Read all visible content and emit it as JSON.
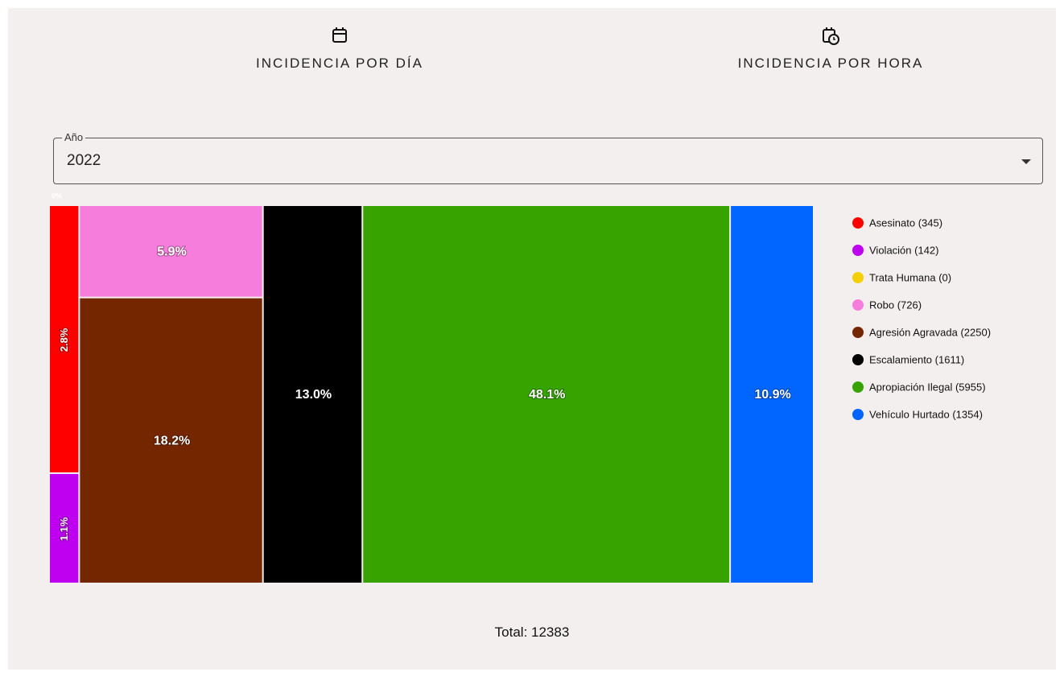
{
  "tabs": [
    "INCIDENCIA POR DÍA",
    "INCIDENCIA POR HORA"
  ],
  "select": {
    "label": "Año",
    "value": "2022"
  },
  "chart_data": {
    "type": "treemap",
    "categories": [
      "Asesinato (345)",
      "Violación (142)",
      "Trata Humana (0)",
      "Robo (726)",
      "Agresión Agravada (2250)",
      "Escalamiento (1611)",
      "Apropiación Ilegal (5955)",
      "Vehículo Hurtado (1354)"
    ],
    "values": [
      345,
      142,
      0,
      726,
      2250,
      1611,
      5955,
      1354
    ],
    "value_labels": [
      "2.8%",
      "1.1%",
      "0%",
      "5.9%",
      "18.2%",
      "13.0%",
      "48.1%",
      "10.9%"
    ],
    "colors": [
      "#ff0000",
      "#bf00f0",
      "#f5d000",
      "#f77ddc",
      "#732600",
      "#000000",
      "#36a300",
      "#0066ff"
    ],
    "legend": "right"
  },
  "total": "Total: 12383"
}
